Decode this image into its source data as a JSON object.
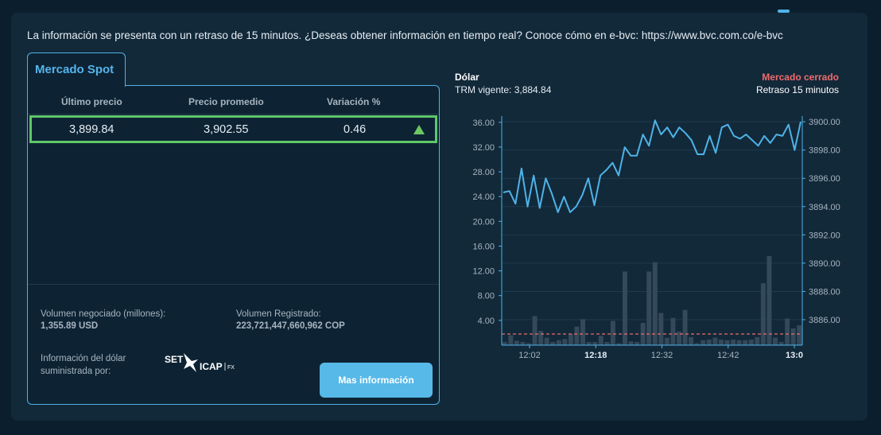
{
  "notice": "La información se presenta con un retraso de 15 minutos. ¿Deseas obtener información en tiempo real? Conoce cómo en e-bvc: https://www.bvc.com.co/e-bvc",
  "tab": {
    "label": "Mercado Spot"
  },
  "table": {
    "headers": [
      "Último precio",
      "Precio promedio",
      "Variación %"
    ],
    "row": {
      "last_price": "3,899.84",
      "avg_price": "3,902.55",
      "variation": "0.46",
      "trend_icon": "triangle-up-icon"
    }
  },
  "stats": {
    "volume_label": "Volumen negociado (millones):",
    "volume_value": "1,355.89 USD",
    "registered_label": "Volumen Registrado:",
    "registered_value": "223,721,447,660,962 COP",
    "provider_label_1": "Información del dólar",
    "provider_label_2": "suministrada por:",
    "provider_logo": {
      "text_left": "SET",
      "text_right": "ICAP",
      "suffix": "FX"
    }
  },
  "more_button": "Mas información",
  "chart_header": {
    "title": "Dólar",
    "trm": "TRM vigente: 3,884.84",
    "status": "Mercado cerrado",
    "delay": "Retraso 15 minutos"
  },
  "colors": {
    "line": "#4fb3e8",
    "bars": "#34495a",
    "reference": "#f06b6b",
    "accent": "#57b9e8",
    "up": "#6cc763"
  },
  "chart_data": {
    "type": "line+bar",
    "x_ticks": [
      "12:02",
      "12:18",
      "12:32",
      "12:42",
      "13:0"
    ],
    "bold_ticks": [
      "12:18",
      "13:0"
    ],
    "left_axis": {
      "ticks": [
        "36.00",
        "32.00",
        "28.00",
        "24.00",
        "20.00",
        "16.00",
        "12.00",
        "8.00",
        "4.00"
      ],
      "ylim": [
        0,
        37
      ]
    },
    "right_axis": {
      "ticks": [
        "3900.00",
        "3898.00",
        "3896.00",
        "3894.00",
        "3892.00",
        "3890.00",
        "3888.00",
        "3886.00"
      ],
      "ylim": [
        3884.2,
        3900.4
      ]
    },
    "reference_line": {
      "value": 1.8,
      "axis": "left"
    },
    "series": [
      {
        "kind": "line",
        "axis": "right",
        "values": [
          3895.0,
          3895.1,
          3894.2,
          3896.7,
          3894.0,
          3896.2,
          3893.9,
          3896.0,
          3894.9,
          3893.6,
          3894.7,
          3893.6,
          3894.0,
          3894.8,
          3896.0,
          3894.1,
          3896.2,
          3896.6,
          3897.1,
          3896.2,
          3898.2,
          3897.6,
          3897.6,
          3899.1,
          3898.3,
          3900.1,
          3899.1,
          3899.6,
          3898.9,
          3899.6,
          3899.2,
          3898.7,
          3897.7,
          3897.7,
          3899.0,
          3897.8,
          3899.6,
          3899.8,
          3899.0,
          3898.8,
          3899.1,
          3898.7,
          3898.3,
          3899.0,
          3898.5,
          3899.1,
          3899.0,
          3899.8,
          3898.0,
          3900.0
        ]
      },
      {
        "kind": "bar",
        "axis": "left",
        "values": [
          0.5,
          1.6,
          0.7,
          0.5,
          0.3,
          4.7,
          2.3,
          1.2,
          0.5,
          0.8,
          1.0,
          1.8,
          3.0,
          4.2,
          0.5,
          0.5,
          1.5,
          0.5,
          3.9,
          0.3,
          11.9,
          0.6,
          0.5,
          3.6,
          11.9,
          13.4,
          5.2,
          1.2,
          4.4,
          2.2,
          5.7,
          1.3,
          0.3,
          0.8,
          0.9,
          1.2,
          0.9,
          0.8,
          0.9,
          0.8,
          0.8,
          0.9,
          1.3,
          10.0,
          14.4,
          1.2,
          0.5,
          4.3,
          2.7,
          3.2
        ]
      }
    ]
  }
}
